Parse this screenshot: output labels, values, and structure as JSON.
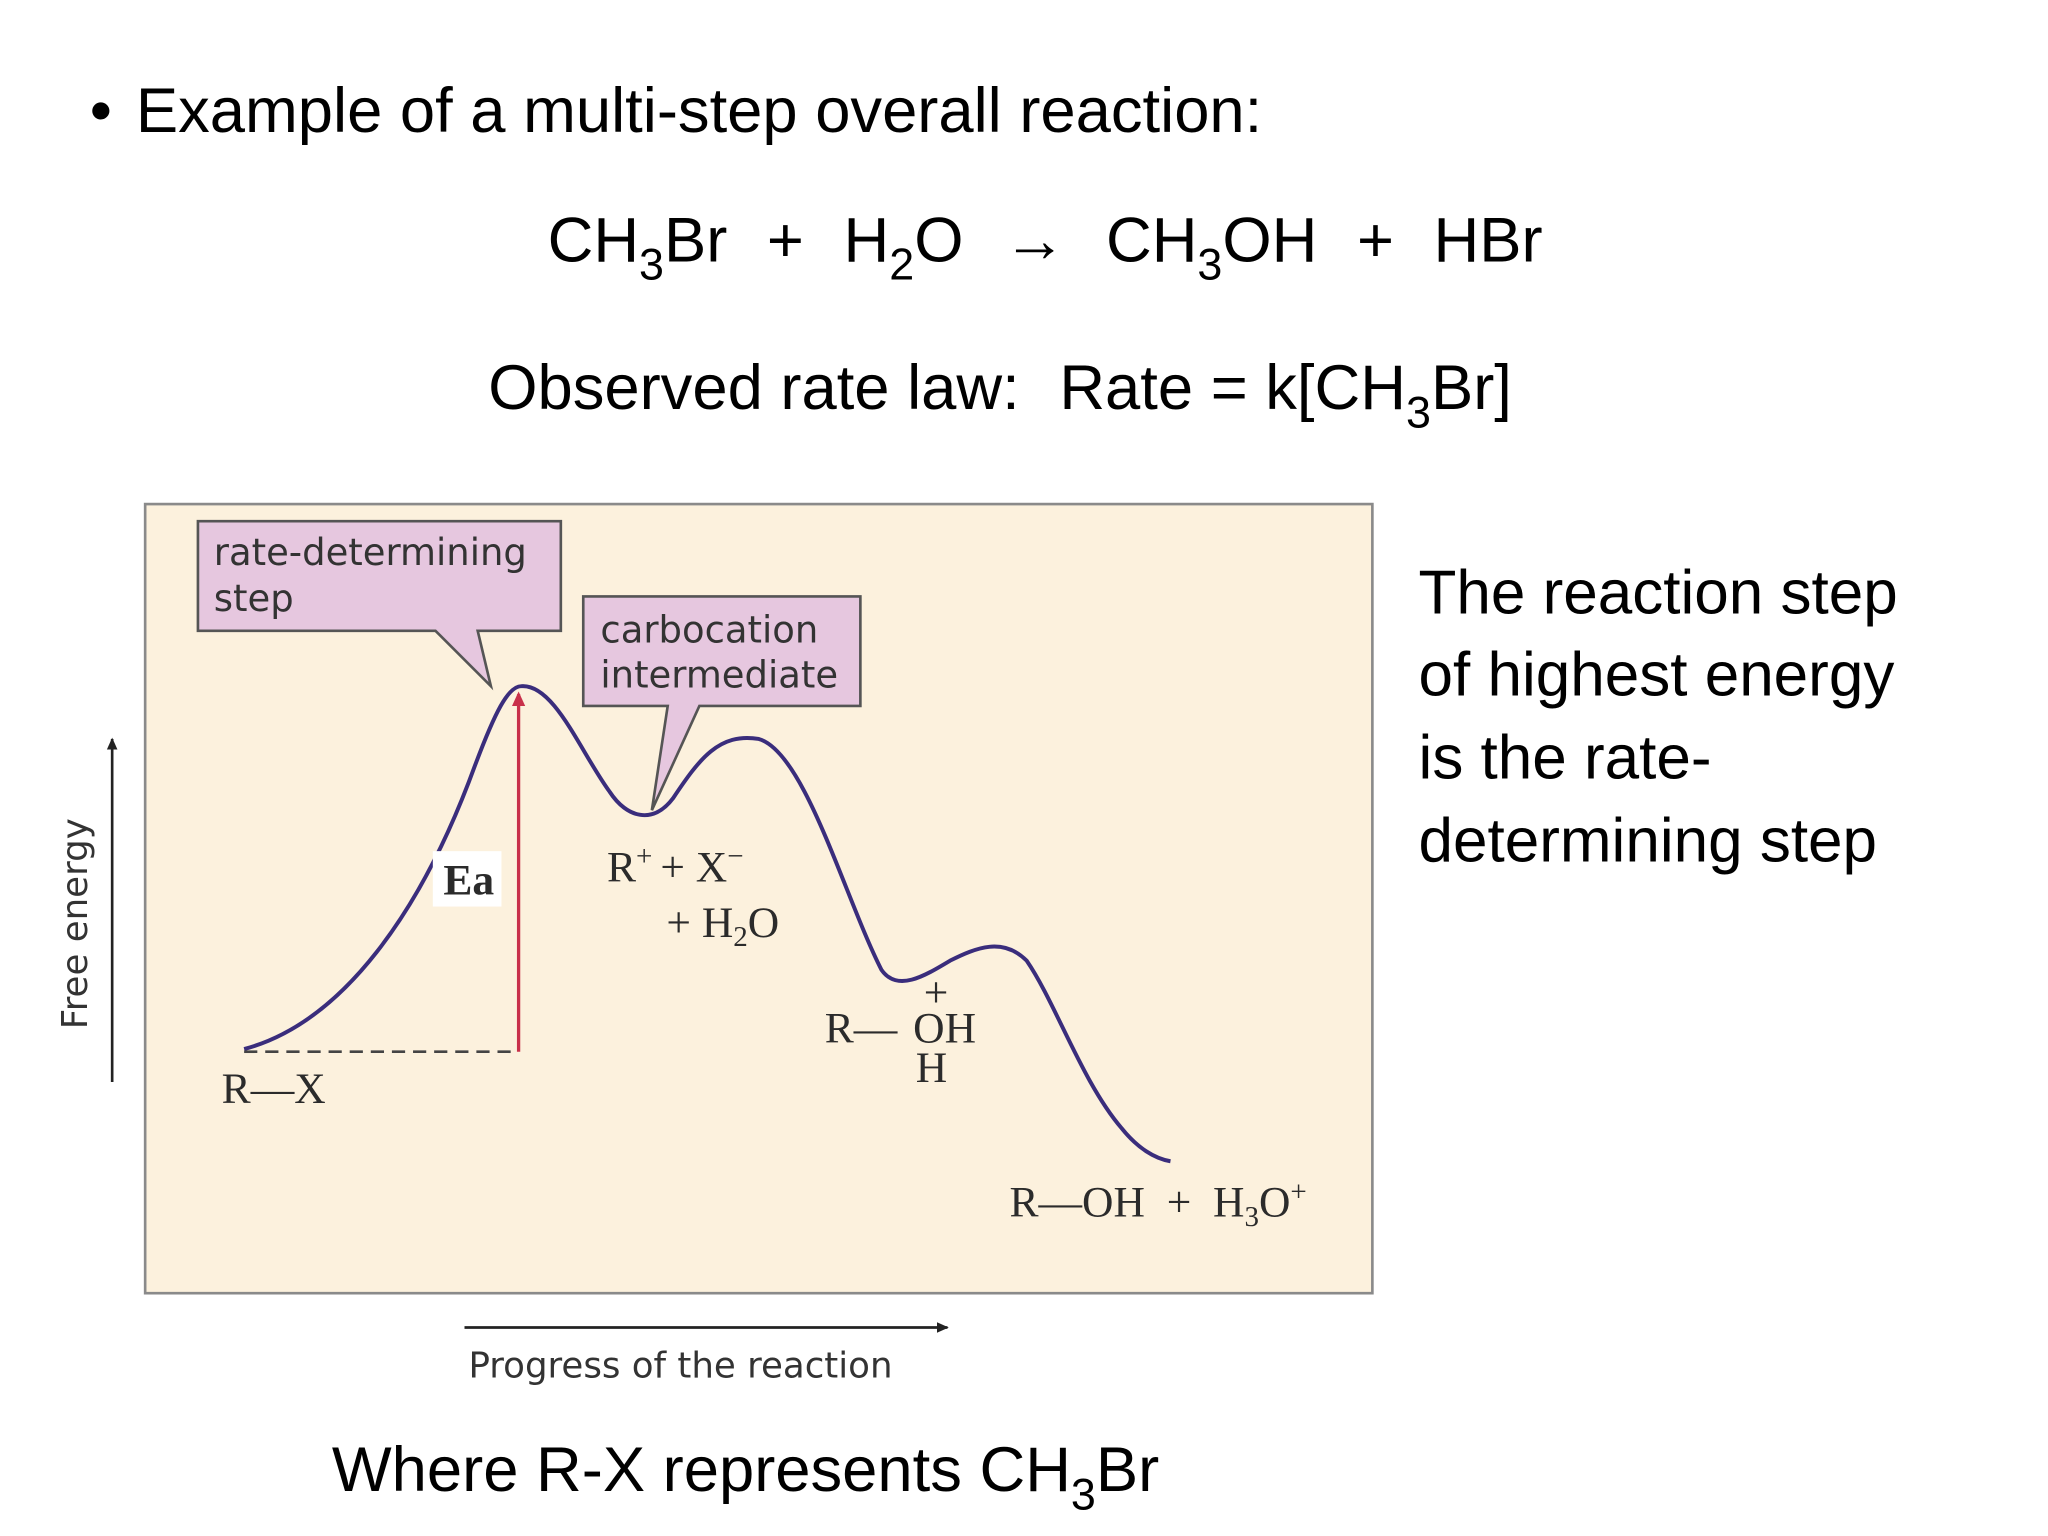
{
  "bullet": "•",
  "heading": "Example of a multi-step overall reaction:",
  "equation": [
    "CH",
    "3",
    "Br",
    "+",
    "H",
    "2",
    "O",
    "→",
    "CH",
    "3",
    "OH",
    "+",
    "HBr"
  ],
  "rate_law": {
    "label": "Observed rate law:",
    "expression": [
      "Rate = k[CH",
      "3",
      "Br]"
    ]
  },
  "diagram": {
    "callouts": [
      [
        "rate-determining",
        "step"
      ],
      [
        "carbocation",
        "intermediate"
      ]
    ],
    "ea": "Ea",
    "reactant": "R—X",
    "intermediate": [
      "R",
      "+",
      "+ X",
      "−",
      "+ H",
      "2",
      "O"
    ],
    "protonated": [
      "R—",
      "+",
      "OH",
      "H"
    ],
    "products": [
      "R—OH  +  H",
      "3",
      "O",
      "+"
    ],
    "y_axis": "Free energy",
    "x_axis": "Progress of the reaction"
  },
  "note": [
    "The reaction step",
    "of highest energy",
    "is the rate-",
    "determining step"
  ],
  "footer": [
    "Where R-X represents CH",
    "3",
    "Br"
  ]
}
